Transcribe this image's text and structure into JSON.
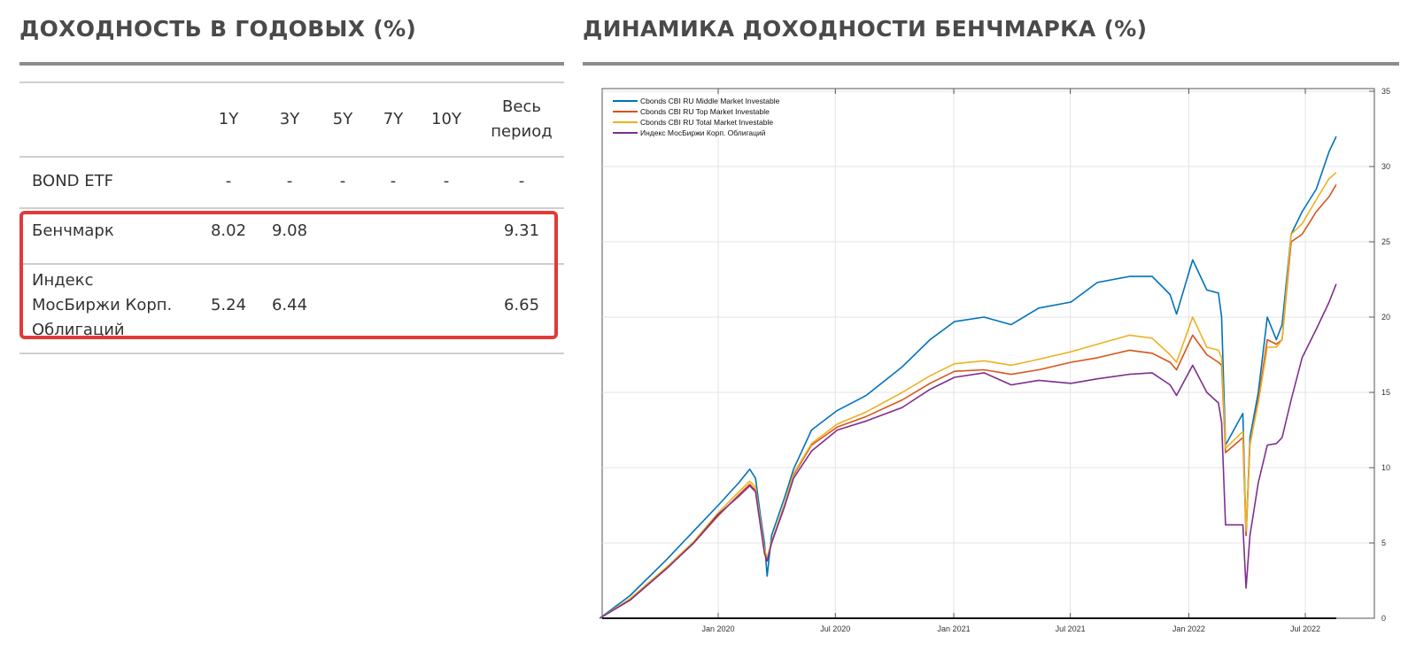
{
  "left": {
    "title": "ДОХОДНОСТЬ В ГОДОВЫХ (%)",
    "columns": [
      "1Y",
      "3Y",
      "5Y",
      "7Y",
      "10Y",
      "Весь период"
    ],
    "columns_lines": [
      [
        "1Y"
      ],
      [
        "3Y"
      ],
      [
        "5Y"
      ],
      [
        "7Y"
      ],
      [
        "10Y"
      ],
      [
        "Весь",
        "период"
      ]
    ],
    "rows": [
      {
        "label_lines": [
          "BOND ETF"
        ],
        "values": [
          "-",
          "-",
          "-",
          "-",
          "-",
          "-"
        ]
      },
      {
        "label_lines": [
          "Бенчмарк"
        ],
        "values": [
          "8.02",
          "9.08",
          "",
          "",
          "",
          "9.31"
        ]
      },
      {
        "label_lines": [
          "Индекс",
          "МосБиржи Корп.",
          "Облигаций"
        ],
        "values": [
          "5.24",
          "6.44",
          "",
          "",
          "",
          "6.65"
        ]
      }
    ],
    "highlight_color": "#e03a3a"
  },
  "right": {
    "title": "ДИНАМИКА ДОХОДНОСТИ БЕНЧМАРКА (%)"
  },
  "chart_data": {
    "type": "line",
    "title": "",
    "xlabel": "",
    "ylabel": "",
    "y_axis_side": "right",
    "ylim": [
      0,
      35
    ],
    "yticks": [
      0,
      5,
      10,
      15,
      20,
      25,
      30,
      35
    ],
    "xticks": [
      {
        "date": "2020-01-01",
        "label": "Jan 2020"
      },
      {
        "date": "2020-07-01",
        "label": "Jul 2020"
      },
      {
        "date": "2021-01-01",
        "label": "Jan 2021"
      },
      {
        "date": "2021-07-01",
        "label": "Jul 2021"
      },
      {
        "date": "2022-01-01",
        "label": "Jan 2022"
      },
      {
        "date": "2022-07-01",
        "label": "Jul 2022"
      }
    ],
    "grid": true,
    "legend_position": "top-left",
    "x": [
      "2019-07-01",
      "2019-08-17",
      "2019-10-13",
      "2019-11-24",
      "2020-01-01",
      "2020-02-02",
      "2020-02-19",
      "2020-02-28",
      "2020-03-06",
      "2020-03-13",
      "2020-03-17",
      "2020-03-24",
      "2020-04-13",
      "2020-04-27",
      "2020-05-25",
      "2020-07-04",
      "2020-08-18",
      "2020-10-13",
      "2020-11-25",
      "2021-01-02",
      "2021-02-17",
      "2021-03-31",
      "2021-05-13",
      "2021-07-02",
      "2021-08-12",
      "2021-10-01",
      "2021-11-05",
      "2021-12-03",
      "2021-12-13",
      "2022-01-07",
      "2022-01-29",
      "2022-02-16",
      "2022-02-21",
      "2022-02-27",
      "2022-03-26",
      "2022-03-31",
      "2022-04-06",
      "2022-04-19",
      "2022-05-03",
      "2022-05-17",
      "2022-05-26",
      "2022-06-09",
      "2022-06-26",
      "2022-07-18",
      "2022-08-07",
      "2022-08-18"
    ],
    "series": [
      {
        "name": "Cbonds CBI RU Middle Market Investable",
        "color": "#0072bd",
        "values": [
          0,
          1.5,
          3.9,
          5.8,
          7.5,
          9.0,
          9.9,
          9.3,
          7,
          5,
          2.8,
          5.5,
          8,
          9.9,
          12.5,
          13.8,
          14.8,
          16.7,
          18.5,
          19.7,
          20,
          19.5,
          20.6,
          21,
          22.3,
          22.7,
          22.7,
          21.5,
          20.2,
          23.8,
          21.8,
          21.6,
          20,
          11.5,
          13.6,
          5.5,
          12,
          15,
          20,
          18.5,
          19.5,
          25.5,
          27,
          28.5,
          31,
          32
        ]
      },
      {
        "name": "Cbonds CBI RU Top Market Investable",
        "color": "#d95319",
        "values": [
          0,
          1.2,
          3.3,
          5.0,
          6.8,
          8.2,
          8.9,
          8.5,
          6.5,
          4.5,
          4.0,
          5.0,
          7.5,
          9.5,
          11.5,
          12.7,
          13.4,
          14.5,
          15.6,
          16.4,
          16.5,
          16.2,
          16.5,
          17.0,
          17.3,
          17.8,
          17.6,
          17.0,
          16.5,
          18.8,
          17.5,
          17.0,
          16.8,
          11.0,
          12.0,
          5.5,
          11.5,
          14.5,
          18.5,
          18.2,
          18.5,
          25,
          25.5,
          27,
          28,
          28.8
        ]
      },
      {
        "name": "Cbonds CBI RU Total Market Investable",
        "color": "#edb120",
        "values": [
          0,
          1.3,
          3.4,
          5.1,
          7.0,
          8.4,
          9.1,
          8.7,
          6.6,
          4.6,
          4.0,
          5.1,
          7.6,
          9.6,
          11.6,
          12.9,
          13.7,
          15.0,
          16.1,
          16.9,
          17.1,
          16.8,
          17.2,
          17.7,
          18.2,
          18.8,
          18.6,
          17.5,
          17.0,
          20.0,
          18.0,
          17.8,
          17.3,
          11.3,
          12.4,
          5.8,
          11.6,
          14.3,
          18.0,
          18.0,
          18.5,
          25.5,
          26.2,
          27.8,
          29.2,
          29.6
        ]
      },
      {
        "name": "Индекс МосБиржи Корп. Облигаций",
        "color": "#7e2f8e",
        "values": [
          0,
          1.2,
          3.3,
          5.0,
          6.9,
          8.1,
          8.8,
          8.4,
          6.3,
          4.3,
          3.8,
          5.0,
          7.4,
          9.3,
          11.1,
          12.5,
          13.1,
          14.0,
          15.2,
          16.0,
          16.3,
          15.5,
          15.8,
          15.6,
          15.9,
          16.2,
          16.3,
          15.5,
          14.8,
          16.8,
          15.0,
          14.3,
          13.0,
          6.2,
          6.2,
          2.0,
          5.5,
          9.0,
          11.5,
          11.6,
          12.0,
          14.5,
          17.3,
          19.2,
          21.0,
          22.2
        ]
      }
    ]
  }
}
